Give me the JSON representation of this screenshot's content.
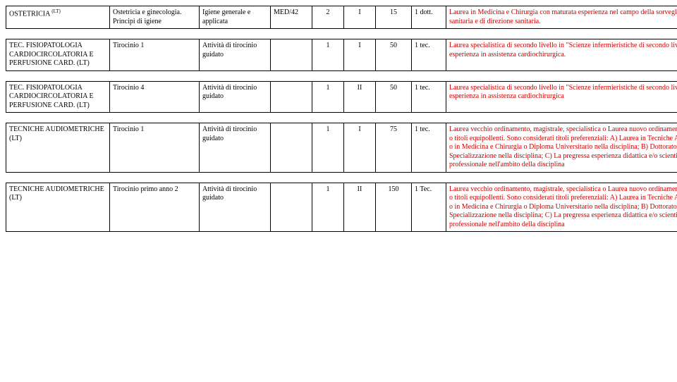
{
  "rows": [
    {
      "name_html": "OSTETRICIA <sup>(LT)</sup>",
      "degree": "Ostetricia e ginecologia. Principi di igiene",
      "type": "Igiene generale e applicata",
      "ssd": "MED/42",
      "n1": "2",
      "n2": "I",
      "n3": "15",
      "n4": "1 dott.",
      "notes": "Laurea in Medicina e Chirurgia con maturata esperienza nel campo della sorveglianza sanitaria e di direzione sanitaria.",
      "notes_red": true
    },
    {
      "name_html": "TEC. FISIOPATOLOGIA CARDIOCIRCOLATORIA E PERFUSIONE CARD. (LT)",
      "degree": "Tirocinio 1",
      "type": "Attività di tirocinio guidato",
      "ssd": "",
      "n1": "1",
      "n2": "I",
      "n3": "50",
      "n4": "1 tec.",
      "notes": "Laurea specialistica di secondo livello in \"Scienze infermieristiche di secondo livello\" con esperienza in assistenza cardiochirurgica.",
      "notes_red": true
    },
    {
      "name_html": "TEC. FISIOPATOLOGIA CARDIOCIRCOLATORIA E PERFUSIONE CARD. (LT)",
      "degree": "Tirocinio 4",
      "type": "Attività di tirocinio guidato",
      "ssd": "",
      "n1": "1",
      "n2": "II",
      "n3": "50",
      "n4": "1 tec.",
      "notes": "Laurea specialistica di secondo livello in \"Scienze infermieristiche di secondo livello\" con esperienza in assistenza cardiochirurgica",
      "notes_red": true
    },
    {
      "name_html": "TECNICHE AUDIOMETRICHE (LT)",
      "degree": "Tirocinio 1",
      "type": "Attività di tirocinio guidato",
      "ssd": "",
      "n1": "1",
      "n2": "I",
      "n3": "75",
      "n4": "1 tec.",
      "notes": "Laurea vecchio ordinamento, magistrale, specialistica o Laurea nuovo ordinamento (triennale) o titoli equipollenti. Sono considerati titoli preferenziali: A) Laurea in Tecniche Audiometriche o in Medicina e Chirurgia o Diploma Universitario nella disciplina; B) Dottorato di ricerca e/o Specializzazione nella disciplina; C) La pregressa esperienza didattica e/o scientifica e/o professionale nell'ambito della disciplina",
      "notes_red": true
    },
    {
      "name_html": "TECNICHE AUDIOMETRICHE (LT)",
      "degree": "Tirocinio primo anno 2",
      "type": "Attività di tirocinio guidato",
      "ssd": "",
      "n1": "1",
      "n2": "II",
      "n3": "150",
      "n4": "1 Tec.",
      "notes": "Laurea vecchio ordinamento, magistrale, specialistica o Laurea nuovo ordinamento (triennale) o titoli equipollenti. Sono considerati titoli preferenziali: A) Laurea in Tecniche Audiometriche o in Medicina e Chirurgia o Diploma Universitario nella disciplina; B) Dottorato di ricerca e/o Specializzazione nella disciplina; C) La pregressa esperienza didattica e/o scientifica e/o professionale nell'ambito della disciplina",
      "notes_red": true
    }
  ]
}
